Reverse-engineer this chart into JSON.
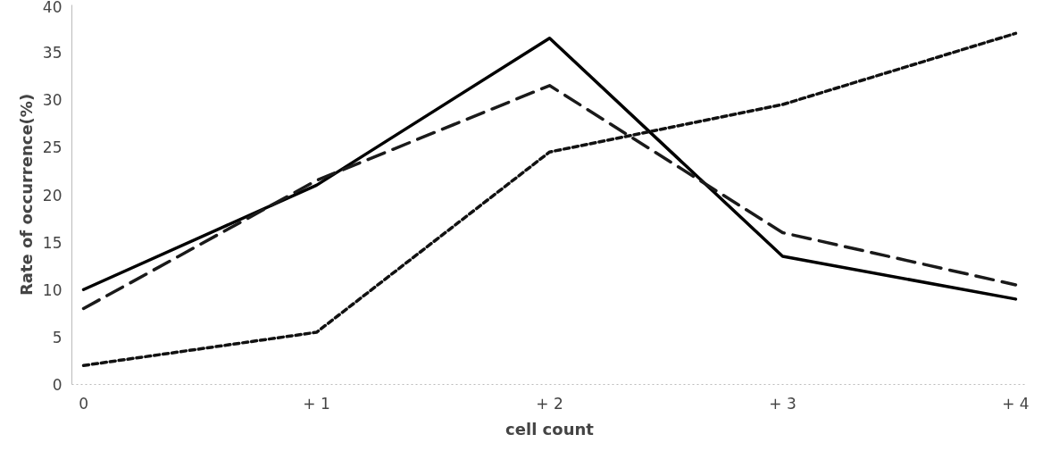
{
  "chart_data": {
    "type": "line",
    "xlabel": "cell count",
    "ylabel": "Rate of occurrence(%)",
    "categories": [
      "0",
      "+ 1",
      "+ 2",
      "+ 3",
      "+ 4"
    ],
    "ylim": [
      0,
      40
    ],
    "yticks": [
      0,
      5,
      10,
      15,
      20,
      25,
      30,
      35,
      40
    ],
    "grid": false,
    "marker": "none",
    "series": [
      {
        "color": "#000000",
        "line_style": "solid",
        "values": [
          10,
          21,
          36.5,
          13.5,
          9
        ]
      },
      {
        "color": "#1a1a1a",
        "line_style": "dashed",
        "values": [
          8,
          21.5,
          31.5,
          16,
          10.5
        ]
      },
      {
        "color": "#111111",
        "line_style": "dotted",
        "values": [
          2,
          5.5,
          24.5,
          29.5,
          37
        ]
      }
    ]
  }
}
